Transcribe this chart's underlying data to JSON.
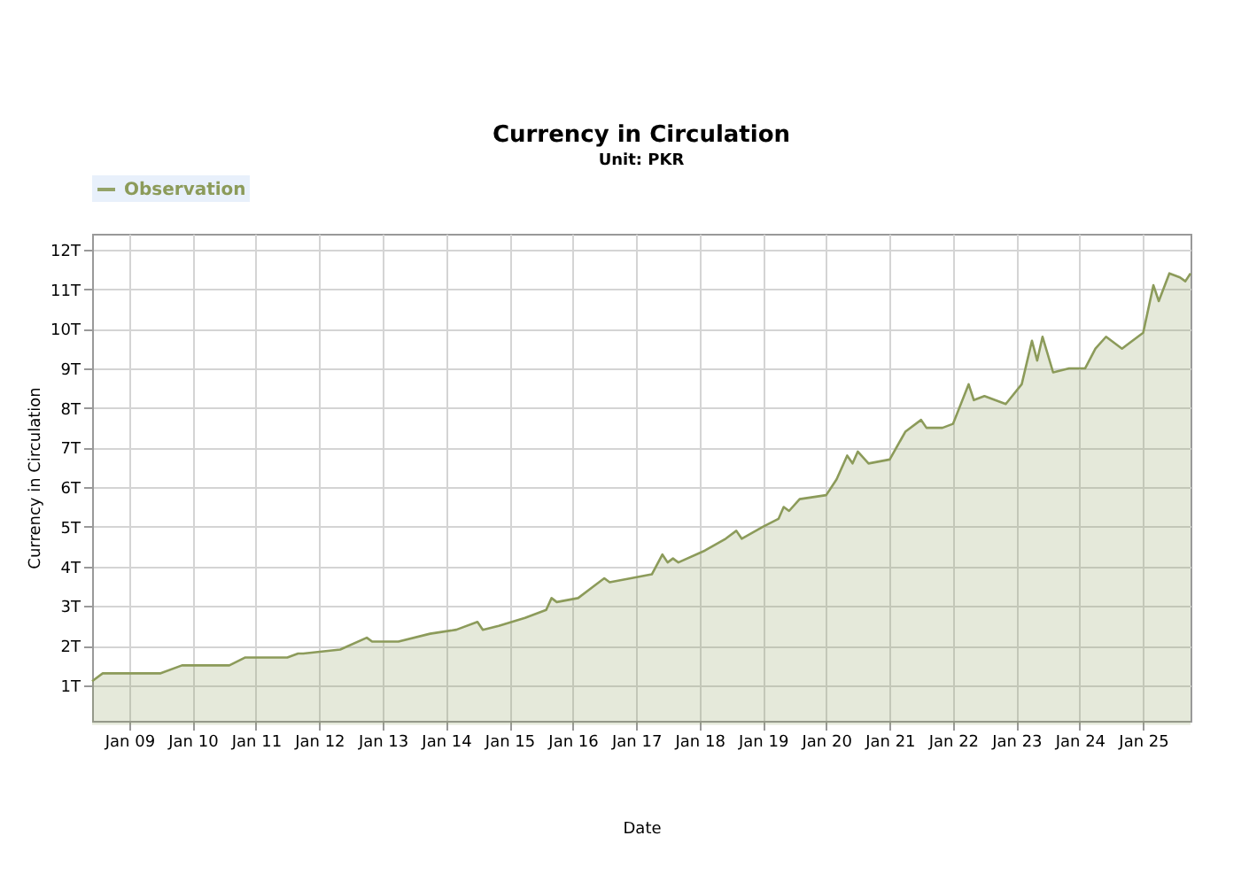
{
  "chart_data": {
    "type": "area",
    "title": "Currency in Circulation",
    "subtitle": "Unit: PKR",
    "xlabel": "Date",
    "ylabel": "Currency in Circulation",
    "x": [
      "2008-06",
      "2008-08",
      "2008-09",
      "2009-07",
      "2009-11",
      "2010-01",
      "2010-08",
      "2010-11",
      "2011-07",
      "2011-09",
      "2011-10",
      "2012-05",
      "2012-10",
      "2012-11",
      "2013-04",
      "2013-10",
      "2014-03",
      "2014-07",
      "2014-08",
      "2014-11",
      "2015-04",
      "2015-08",
      "2015-09",
      "2015-10",
      "2016-02",
      "2016-05",
      "2016-07",
      "2016-08",
      "2016-12",
      "2017-04",
      "2017-06",
      "2017-07",
      "2017-08",
      "2017-09",
      "2018-02",
      "2018-06",
      "2018-08",
      "2018-09",
      "2019-01",
      "2019-04",
      "2019-05",
      "2019-06",
      "2019-08",
      "2020-01",
      "2020-03",
      "2020-05",
      "2020-06",
      "2020-07",
      "2020-09",
      "2021-01",
      "2021-04",
      "2021-07",
      "2021-08",
      "2021-11",
      "2022-01",
      "2022-04",
      "2022-05",
      "2022-07",
      "2022-11",
      "2023-02",
      "2023-04",
      "2023-05",
      "2023-06",
      "2023-08",
      "2023-11",
      "2024-02",
      "2024-04",
      "2024-06",
      "2024-09",
      "2025-01",
      "2025-03",
      "2025-04",
      "2025-06",
      "2025-08",
      "2025-09",
      "2025-10"
    ],
    "series": [
      {
        "name": "Observation",
        "color": "#8c9b5a",
        "values": [
          1.1,
          1.3,
          1.3,
          1.3,
          1.5,
          1.5,
          1.5,
          1.7,
          1.7,
          1.8,
          1.8,
          1.9,
          2.2,
          2.1,
          2.1,
          2.3,
          2.4,
          2.6,
          2.4,
          2.5,
          2.7,
          2.9,
          3.2,
          3.1,
          3.2,
          3.5,
          3.7,
          3.6,
          3.7,
          3.8,
          4.3,
          4.1,
          4.2,
          4.1,
          4.4,
          4.7,
          4.9,
          4.7,
          5.0,
          5.2,
          5.5,
          5.4,
          5.7,
          5.8,
          6.2,
          6.8,
          6.6,
          6.9,
          6.6,
          6.7,
          7.4,
          7.7,
          7.5,
          7.5,
          7.6,
          8.6,
          8.2,
          8.3,
          8.1,
          8.6,
          9.7,
          9.2,
          9.8,
          8.9,
          9.0,
          9.0,
          9.5,
          9.8,
          9.5,
          9.9,
          11.1,
          10.7,
          11.4,
          11.3,
          11.2,
          11.4
        ]
      }
    ],
    "xlim": [
      "2008-06",
      "2025-10"
    ],
    "xticks": [
      {
        "value": "2009-01",
        "label": "Jan 09"
      },
      {
        "value": "2010-01",
        "label": "Jan 10"
      },
      {
        "value": "2011-01",
        "label": "Jan 11"
      },
      {
        "value": "2012-01",
        "label": "Jan 12"
      },
      {
        "value": "2013-01",
        "label": "Jan 13"
      },
      {
        "value": "2014-01",
        "label": "Jan 14"
      },
      {
        "value": "2015-01",
        "label": "Jan 15"
      },
      {
        "value": "2016-01",
        "label": "Jan 16"
      },
      {
        "value": "2017-01",
        "label": "Jan 17"
      },
      {
        "value": "2018-01",
        "label": "Jan 18"
      },
      {
        "value": "2019-01",
        "label": "Jan 19"
      },
      {
        "value": "2020-01",
        "label": "Jan 20"
      },
      {
        "value": "2021-01",
        "label": "Jan 21"
      },
      {
        "value": "2022-01",
        "label": "Jan 22"
      },
      {
        "value": "2023-01",
        "label": "Jan 23"
      },
      {
        "value": "2024-01",
        "label": "Jan 24"
      },
      {
        "value": "2025-01",
        "label": "Jan 25"
      }
    ],
    "ylim": [
      0.1,
      12.4
    ],
    "yticks": [
      {
        "value": 1,
        "label": "1T"
      },
      {
        "value": 2,
        "label": "2T"
      },
      {
        "value": 3,
        "label": "3T"
      },
      {
        "value": 4,
        "label": "4T"
      },
      {
        "value": 5,
        "label": "5T"
      },
      {
        "value": 6,
        "label": "6T"
      },
      {
        "value": 7,
        "label": "7T"
      },
      {
        "value": 8,
        "label": "8T"
      },
      {
        "value": 9,
        "label": "9T"
      },
      {
        "value": 10,
        "label": "10T"
      },
      {
        "value": 11,
        "label": "11T"
      },
      {
        "value": 12,
        "label": "12T"
      }
    ],
    "grid": true,
    "legend": "top"
  }
}
